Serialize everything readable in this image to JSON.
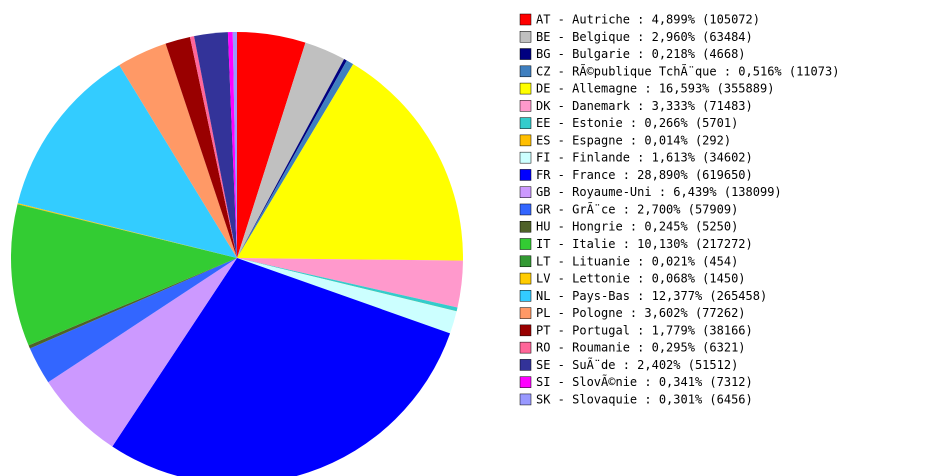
{
  "chart_data": {
    "type": "pie",
    "categories": [
      "AT - Autriche : 4,899% (105072)",
      "BE - Belgique : 2,960% (63484)",
      "BG - Bulgarie : 0,218% (4668)",
      "CZ - RÃ©publique TchÃ¨que : 0,516% (11073)",
      "DE - Allemagne : 16,593% (355889)",
      "DK - Danemark : 3,333% (71483)",
      "EE - Estonie : 0,266% (5701)",
      "ES - Espagne : 0,014% (292)",
      "FI - Finlande : 1,613% (34602)",
      "FR - France : 28,890% (619650)",
      "GB - Royaume-Uni : 6,439% (138099)",
      "GR - GrÃ¨ce : 2,700% (57909)",
      "HU - Hongrie : 0,245% (5250)",
      "IT - Italie : 10,130% (217272)",
      "LT - Lituanie : 0,021% (454)",
      "LV - Lettonie : 0,068% (1450)",
      "NL - Pays-Bas : 12,377% (265458)",
      "PL - Pologne : 3,602% (77262)",
      "PT - Portugal : 1,779% (38166)",
      "RO - Roumanie : 0,295% (6321)",
      "SE - SuÃ¨de : 2,402% (51512)",
      "SI - SlovÃ©nie : 0,341% (7312)",
      "SK - Slovaquie : 0,301% (6456)"
    ],
    "values": [
      4.899,
      2.96,
      0.218,
      0.516,
      16.593,
      3.333,
      0.266,
      0.014,
      1.613,
      28.89,
      6.439,
      2.7,
      0.245,
      10.13,
      0.021,
      0.068,
      12.377,
      3.602,
      1.779,
      0.295,
      2.402,
      0.341,
      0.301
    ],
    "colors": [
      "#ff0000",
      "#c0c0c0",
      "#000080",
      "#3f7fbf",
      "#ffff00",
      "#ff99cc",
      "#33cccc",
      "#ffbf00",
      "#ccffff",
      "#0000ff",
      "#cc99ff",
      "#3366ff",
      "#4f6228",
      "#33cc33",
      "#339933",
      "#ffcc00",
      "#33ccff",
      "#ff9966",
      "#990000",
      "#ff6699",
      "#333399",
      "#ff00ff",
      "#9999ff"
    ]
  }
}
